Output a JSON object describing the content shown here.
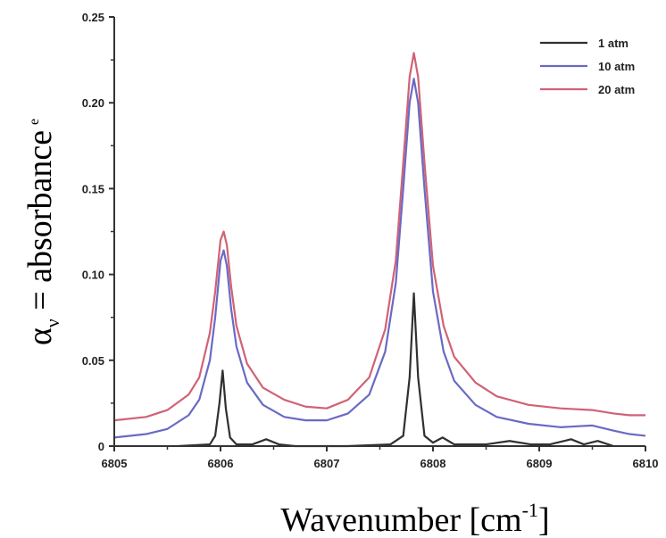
{
  "chart_data": {
    "type": "line",
    "xlabel": "Wavenumber [cm",
    "xlabel_sup": "-1",
    "xlabel_end": "]",
    "ylabel_alpha": "α",
    "ylabel_sub": "ν",
    "ylabel_main": " = absorbance",
    "ylabel_extra": "e",
    "xlim": [
      6805,
      6810
    ],
    "ylim": [
      0,
      0.25
    ],
    "x_ticks": [
      6805,
      6806,
      6807,
      6808,
      6809,
      6810
    ],
    "x_tick_labels": [
      "6805",
      "6806",
      "6807",
      "6808",
      "6809",
      "6810"
    ],
    "y_ticks": [
      0,
      0.05,
      0.1,
      0.15,
      0.2,
      0.25
    ],
    "y_tick_labels": [
      "0",
      "0.05",
      "0.10",
      "0.15",
      "0.20",
      "0.25"
    ],
    "grid": false,
    "legend_position": "top-right",
    "series": [
      {
        "name": "1 atm",
        "color": "#303030",
        "x": [
          6805.6,
          6805.9,
          6805.95,
          6805.99,
          6806.02,
          6806.05,
          6806.09,
          6806.15,
          6806.3,
          6806.43,
          6806.55,
          6806.7,
          6807.2,
          6807.6,
          6807.72,
          6807.78,
          6807.82,
          6807.86,
          6807.92,
          6808.0,
          6808.09,
          6808.2,
          6808.5,
          6808.72,
          6808.92,
          6809.1,
          6809.3,
          6809.42,
          6809.55,
          6809.7
        ],
        "y": [
          0,
          0.001,
          0.006,
          0.025,
          0.044,
          0.022,
          0.005,
          0.001,
          0.001,
          0.004,
          0.001,
          0,
          0,
          0.001,
          0.006,
          0.04,
          0.089,
          0.04,
          0.006,
          0.002,
          0.005,
          0.001,
          0.001,
          0.003,
          0.001,
          0.001,
          0.004,
          0.001,
          0.003,
          0
        ]
      },
      {
        "name": "10 atm",
        "color": "#6a6ac4",
        "x": [
          6805,
          6805.3,
          6805.5,
          6805.7,
          6805.8,
          6805.9,
          6805.95,
          6806.0,
          6806.03,
          6806.06,
          6806.1,
          6806.15,
          6806.25,
          6806.4,
          6806.6,
          6806.8,
          6807.0,
          6807.2,
          6807.4,
          6807.55,
          6807.65,
          6807.72,
          6807.78,
          6807.82,
          6807.86,
          6807.92,
          6808.0,
          6808.1,
          6808.2,
          6808.4,
          6808.6,
          6808.9,
          6809.2,
          6809.5,
          6809.7,
          6809.85,
          6810
        ],
        "y": [
          0.005,
          0.007,
          0.01,
          0.018,
          0.027,
          0.05,
          0.075,
          0.108,
          0.114,
          0.105,
          0.08,
          0.058,
          0.037,
          0.024,
          0.017,
          0.015,
          0.015,
          0.019,
          0.03,
          0.055,
          0.095,
          0.15,
          0.2,
          0.214,
          0.2,
          0.15,
          0.09,
          0.055,
          0.038,
          0.024,
          0.017,
          0.013,
          0.011,
          0.012,
          0.009,
          0.007,
          0.006
        ]
      },
      {
        "name": "20 atm",
        "color": "#d06276",
        "x": [
          6805,
          6805.3,
          6805.5,
          6805.7,
          6805.8,
          6805.9,
          6805.95,
          6806.0,
          6806.03,
          6806.06,
          6806.1,
          6806.15,
          6806.25,
          6806.4,
          6806.6,
          6806.8,
          6807.0,
          6807.2,
          6807.4,
          6807.55,
          6807.65,
          6807.72,
          6807.78,
          6807.82,
          6807.86,
          6807.92,
          6808.0,
          6808.1,
          6808.2,
          6808.4,
          6808.6,
          6808.9,
          6809.2,
          6809.5,
          6809.7,
          6809.85,
          6810
        ],
        "y": [
          0.015,
          0.017,
          0.021,
          0.03,
          0.04,
          0.066,
          0.09,
          0.12,
          0.125,
          0.117,
          0.093,
          0.07,
          0.048,
          0.034,
          0.027,
          0.023,
          0.022,
          0.027,
          0.04,
          0.068,
          0.108,
          0.165,
          0.215,
          0.229,
          0.215,
          0.165,
          0.105,
          0.07,
          0.052,
          0.037,
          0.029,
          0.024,
          0.022,
          0.021,
          0.019,
          0.018,
          0.018
        ]
      }
    ]
  }
}
